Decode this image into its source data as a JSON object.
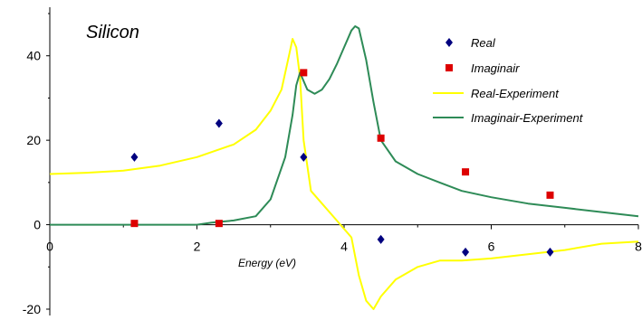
{
  "chart_data": {
    "type": "line",
    "title": "Silicon",
    "xlabel": "Energy (eV)",
    "ylabel": "",
    "xlim": [
      0,
      8
    ],
    "ylim": [
      -20,
      50
    ],
    "xticks": [
      0,
      2,
      4,
      6,
      8
    ],
    "yticks": [
      -20,
      0,
      20,
      40
    ],
    "grid": false,
    "legend_position": "top-right",
    "series": [
      {
        "name": "Real",
        "kind": "scatter",
        "marker": "diamond",
        "color": "#00007f",
        "x": [
          1.15,
          2.3,
          3.45,
          4.5,
          5.65,
          6.8
        ],
        "y": [
          16,
          24,
          16,
          -3.5,
          -6.5,
          -6.5
        ]
      },
      {
        "name": "Imaginary",
        "kind": "scatter",
        "marker": "square",
        "color": "#dd0000",
        "x": [
          1.15,
          2.3,
          3.45,
          4.5,
          5.65,
          6.8
        ],
        "y": [
          0.3,
          0.3,
          36,
          20.5,
          12.5,
          7
        ]
      },
      {
        "name": "Real-Experiment",
        "kind": "line",
        "color": "#ffff00",
        "x": [
          0,
          0.5,
          1.0,
          1.5,
          2.0,
          2.5,
          2.8,
          3.0,
          3.15,
          3.25,
          3.3,
          3.35,
          3.4,
          3.45,
          3.55,
          3.7,
          3.9,
          4.1,
          4.2,
          4.3,
          4.4,
          4.5,
          4.7,
          5.0,
          5.3,
          5.6,
          6.0,
          6.5,
          7.0,
          7.5,
          8.0
        ],
        "y": [
          12,
          12.3,
          12.8,
          14,
          16,
          19,
          22.5,
          27,
          32,
          40,
          44,
          42,
          35,
          20,
          8,
          5,
          1,
          -3,
          -12,
          -18,
          -20,
          -17,
          -13,
          -10,
          -8.5,
          -8.5,
          -8,
          -7,
          -6,
          -4.5,
          -4
        ]
      },
      {
        "name": "Imaginary-Experiment",
        "kind": "line",
        "color": "#2e8b57",
        "x": [
          0,
          1.0,
          2.0,
          2.2,
          2.5,
          2.8,
          3.0,
          3.2,
          3.3,
          3.35,
          3.4,
          3.5,
          3.6,
          3.7,
          3.8,
          3.9,
          4.0,
          4.1,
          4.15,
          4.2,
          4.3,
          4.4,
          4.5,
          4.7,
          5.0,
          5.3,
          5.6,
          6.0,
          6.5,
          7.0,
          7.5,
          8.0
        ],
        "y": [
          0,
          0,
          0,
          0.5,
          1,
          2,
          6,
          16,
          26,
          33,
          36,
          32,
          31,
          32,
          34.5,
          38,
          42,
          46,
          47,
          46.5,
          39,
          29,
          20,
          15,
          12,
          10,
          8,
          6.5,
          5,
          4,
          3,
          2
        ]
      }
    ]
  },
  "legend_labels": {
    "real": "Real",
    "imaginary": "Imaginair",
    "real_experiment": "Real-Experiment",
    "imaginary_experiment": "Imaginair-Experiment"
  }
}
